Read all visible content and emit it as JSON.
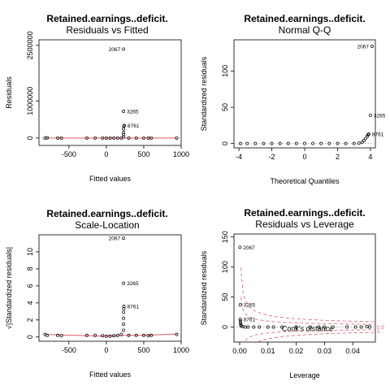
{
  "chart_data": [
    {
      "id": "residuals-vs-fitted",
      "type": "scatter",
      "title": "Retained.earnings..deficit.",
      "subtitle": "Residuals vs Fitted",
      "xlabel": "Fitted values",
      "ylabel": "Residuals",
      "xlim": [
        -900,
        1000
      ],
      "ylim": [
        -200000,
        2650000
      ],
      "xticks": [
        -500,
        0,
        500,
        1000
      ],
      "yticks": [
        0,
        1000000,
        2500000
      ],
      "ytick_labels": [
        "0",
        "1000000",
        "2500000"
      ],
      "points": [
        [
          -820,
          0
        ],
        [
          -790,
          5000
        ],
        [
          -650,
          0
        ],
        [
          -600,
          0
        ],
        [
          -260,
          0
        ],
        [
          -150,
          0
        ],
        [
          -50,
          0
        ],
        [
          0,
          0
        ],
        [
          50,
          0
        ],
        [
          100,
          0
        ],
        [
          150,
          0
        ],
        [
          200,
          0
        ],
        [
          230,
          30000
        ],
        [
          230,
          90000
        ],
        [
          230,
          150000
        ],
        [
          230,
          250000
        ],
        [
          235,
          320000
        ],
        [
          240,
          340000
        ],
        [
          230,
          720000
        ],
        [
          230,
          2400000
        ],
        [
          300,
          0
        ],
        [
          400,
          0
        ],
        [
          500,
          0
        ],
        [
          560,
          0
        ],
        [
          600,
          0
        ],
        [
          940,
          0
        ]
      ],
      "labels": [
        {
          "text": "2067",
          "x": 230,
          "y": 2400000
        },
        {
          "text": "3265",
          "x": 230,
          "y": 720000
        },
        {
          "text": "8761",
          "x": 240,
          "y": 340000
        }
      ],
      "refline": 0,
      "smooth": [
        [
          -820,
          0
        ],
        [
          940,
          0
        ]
      ]
    },
    {
      "id": "normal-qq",
      "type": "scatter",
      "title": "Retained.earnings..deficit.",
      "subtitle": "Normal Q-Q",
      "xlabel": "Theoretical Quantiles",
      "ylabel": "Standardized residuals",
      "xlim": [
        -4.3,
        4.3
      ],
      "ylim": [
        -6,
        143
      ],
      "xticks": [
        -4,
        -2,
        0,
        2,
        4
      ],
      "yticks": [
        0,
        50,
        100
      ],
      "ytick_labels": [
        "0",
        "50",
        "100"
      ],
      "points": [
        [
          -3.9,
          0
        ],
        [
          -3.5,
          0
        ],
        [
          -3.0,
          0
        ],
        [
          -2.5,
          0
        ],
        [
          -2.0,
          0
        ],
        [
          -1.5,
          0
        ],
        [
          -1.0,
          0
        ],
        [
          -0.5,
          0
        ],
        [
          0,
          0
        ],
        [
          0.5,
          0
        ],
        [
          1.0,
          0
        ],
        [
          1.5,
          0
        ],
        [
          2.0,
          0
        ],
        [
          2.5,
          0
        ],
        [
          3.0,
          0
        ],
        [
          3.3,
          0.5
        ],
        [
          3.5,
          2
        ],
        [
          3.6,
          4
        ],
        [
          3.7,
          7
        ],
        [
          3.8,
          10
        ],
        [
          3.85,
          12
        ],
        [
          3.9,
          13
        ],
        [
          4.0,
          39
        ],
        [
          4.1,
          134
        ]
      ],
      "labels": [
        {
          "text": "2067",
          "x": 4.1,
          "y": 134
        },
        {
          "text": "3265",
          "x": 4.0,
          "y": 39
        },
        {
          "text": "8761",
          "x": 3.9,
          "y": 13
        }
      ]
    },
    {
      "id": "scale-location",
      "type": "scatter",
      "title": "Retained.earnings..deficit.",
      "subtitle": "Scale-Location",
      "xlabel": "Fitted values",
      "ylabel": "√|Standardized residuals|",
      "xlim": [
        -900,
        1000
      ],
      "ylim": [
        -0.5,
        12
      ],
      "xticks": [
        -500,
        0,
        500,
        1000
      ],
      "yticks": [
        0,
        2,
        4,
        6,
        8,
        10
      ],
      "ytick_labels": [
        "0",
        "2",
        "4",
        "6",
        "8",
        "10"
      ],
      "points": [
        [
          -820,
          0.3
        ],
        [
          -790,
          0.2
        ],
        [
          -650,
          0.2
        ],
        [
          -600,
          0.15
        ],
        [
          -260,
          0.2
        ],
        [
          -150,
          0.2
        ],
        [
          -50,
          0.15
        ],
        [
          0,
          0.1
        ],
        [
          50,
          0.1
        ],
        [
          100,
          0.15
        ],
        [
          150,
          0.2
        ],
        [
          200,
          0.3
        ],
        [
          230,
          0.8
        ],
        [
          230,
          1.5
        ],
        [
          230,
          2.2
        ],
        [
          230,
          2.9
        ],
        [
          232,
          3.3
        ],
        [
          235,
          3.6
        ],
        [
          230,
          6.3
        ],
        [
          230,
          11.6
        ],
        [
          300,
          0.2
        ],
        [
          400,
          0.2
        ],
        [
          500,
          0.2
        ],
        [
          560,
          0.15
        ],
        [
          600,
          0.2
        ],
        [
          940,
          0.3
        ]
      ],
      "labels": [
        {
          "text": "2067",
          "x": 230,
          "y": 11.6
        },
        {
          "text": "3265",
          "x": 230,
          "y": 6.3
        },
        {
          "text": "8761",
          "x": 235,
          "y": 3.6
        }
      ],
      "smooth": [
        [
          -820,
          0.3
        ],
        [
          -400,
          0.2
        ],
        [
          0,
          0.1
        ],
        [
          230,
          0.2
        ],
        [
          500,
          0.2
        ],
        [
          940,
          0.35
        ]
      ]
    },
    {
      "id": "residuals-vs-leverage",
      "type": "scatter",
      "title": "Retained.earnings..deficit.",
      "subtitle": "Residuals vs Leverage",
      "xlabel": "Leverage",
      "ylabel": "Standardized residuals",
      "xlim": [
        -0.002,
        0.048
      ],
      "ylim": [
        -25,
        155
      ],
      "xticks": [
        0,
        0.01,
        0.02,
        0.03,
        0.04
      ],
      "xtick_labels": [
        "0.00",
        "0.01",
        "0.02",
        "0.03",
        "0.04"
      ],
      "yticks": [
        0,
        50,
        100,
        150
      ],
      "ytick_labels": [
        "0",
        "50",
        "100",
        "150"
      ],
      "points": [
        [
          0.0001,
          133
        ],
        [
          0.0002,
          37
        ],
        [
          0.0002,
          13
        ],
        [
          0.0003,
          10
        ],
        [
          0.0003,
          7
        ],
        [
          0.0004,
          4
        ],
        [
          0.0005,
          2
        ],
        [
          0.001,
          1
        ],
        [
          0.002,
          0
        ],
        [
          0.003,
          0
        ],
        [
          0.005,
          0
        ],
        [
          0.007,
          0
        ],
        [
          0.01,
          0
        ],
        [
          0.012,
          0
        ],
        [
          0.015,
          0
        ],
        [
          0.02,
          0
        ],
        [
          0.025,
          0
        ],
        [
          0.028,
          0
        ],
        [
          0.03,
          0
        ],
        [
          0.033,
          0
        ],
        [
          0.038,
          0
        ],
        [
          0.041,
          0
        ],
        [
          0.043,
          0
        ],
        [
          0.045,
          1
        ],
        [
          0.046,
          0
        ]
      ],
      "labels": [
        {
          "text": "2067",
          "x": 0.0001,
          "y": 133
        },
        {
          "text": "3265",
          "x": 0.0002,
          "y": 37
        },
        {
          "text": "8761",
          "x": 0.0002,
          "y": 13
        }
      ],
      "cooks_distance_label": "Cook's distance",
      "cooks_levels": [
        {
          "label": "0.5",
          "value": 0.5
        },
        {
          "label": "1",
          "value": 1
        }
      ],
      "refline": 0
    }
  ]
}
